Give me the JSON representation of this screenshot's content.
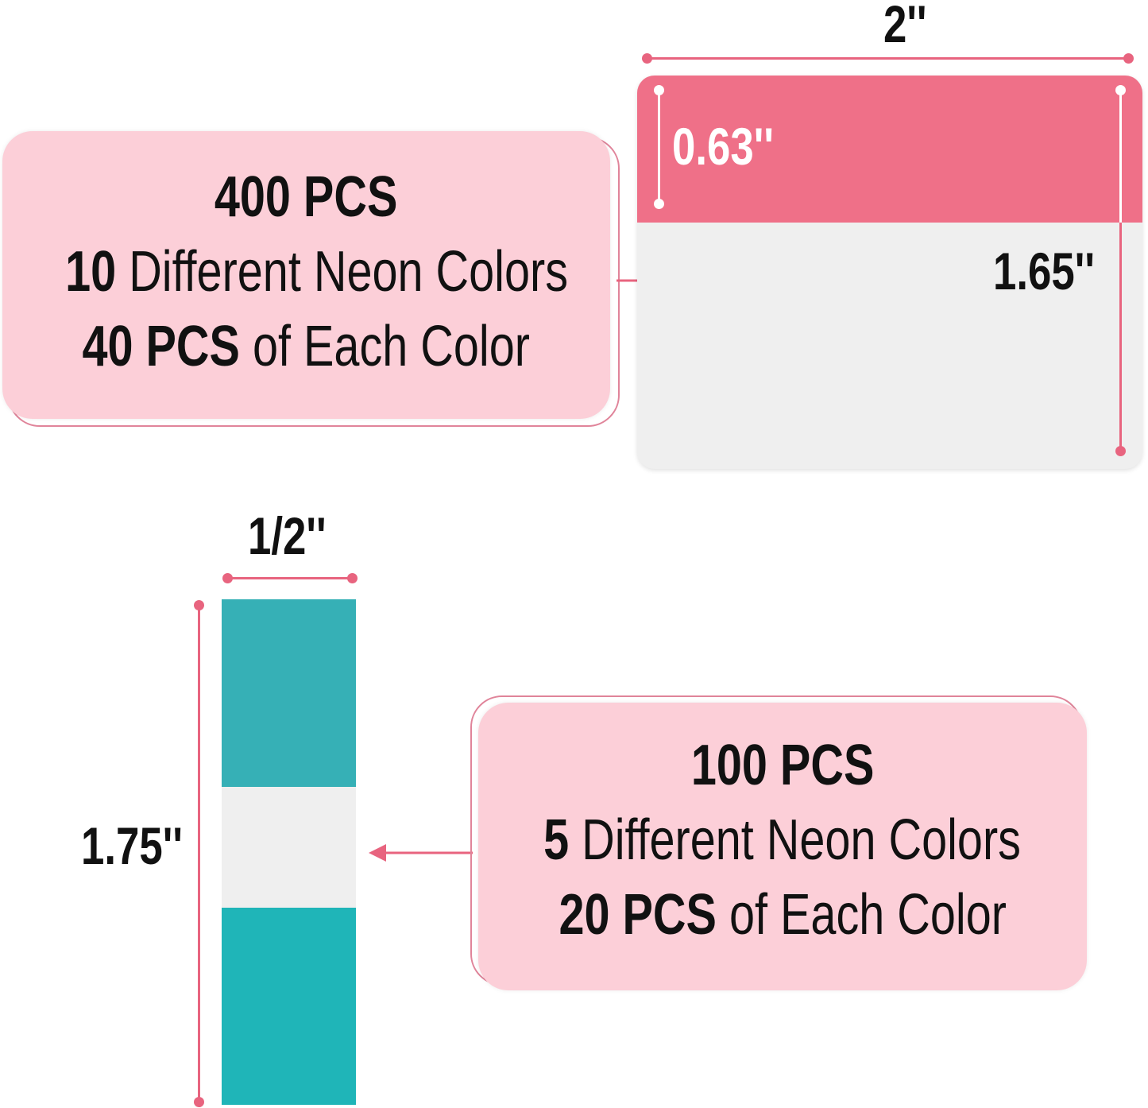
{
  "large_tabs": {
    "width_label": "2''",
    "tab_height_label": "0.63''",
    "height_label": "1.65''",
    "info": {
      "quantity": "400 PCS",
      "colors_count": "10",
      "colors_text": "Different Neon Colors",
      "per_color_count": "40 PCS",
      "per_color_text": "of Each Color"
    },
    "tab_color": "#ef7088"
  },
  "small_tabs": {
    "width_label": "1/2''",
    "height_label": "1.75''",
    "info": {
      "quantity": "100 PCS",
      "colors_count": "5",
      "colors_text": "Different Neon Colors",
      "per_color_count": "20 PCS",
      "per_color_text": "of Each Color"
    },
    "tab_color": "#1fb5b8"
  },
  "accent_color": "#e8647f"
}
